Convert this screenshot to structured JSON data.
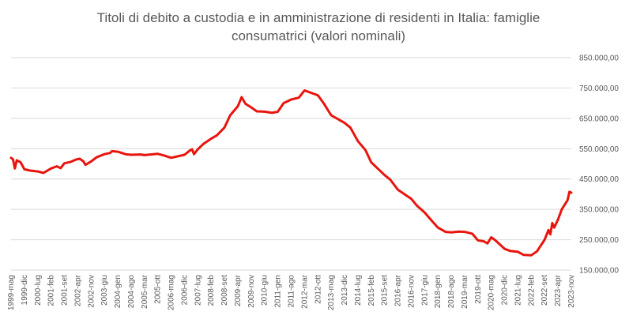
{
  "chart_data": {
    "type": "line",
    "title": "Titoli di debito a custodia e in amministrazione di residenti in Italia: famiglie consumatrici (valori nominali)",
    "title_lines": [
      "Titoli di debito a custodia e in amministrazione di residenti in Italia: famiglie",
      "consumatrici (valori nominali)"
    ],
    "xlabel": "",
    "ylabel": "",
    "ylim": [
      150000,
      850000
    ],
    "y_ticks": [
      150000,
      250000,
      350000,
      450000,
      550000,
      650000,
      750000,
      850000
    ],
    "y_tick_labels": [
      "150.000,00",
      "250.000,00",
      "350.000,00",
      "450.000,00",
      "550.000,00",
      "650.000,00",
      "750.000,00",
      "850.000,00"
    ],
    "y_axis_side": "right",
    "grid": true,
    "legend": "none",
    "x_start": "1999-mag",
    "x_end": "2023-nov",
    "x_tick_labels": [
      "1999-mag",
      "1999-dic",
      "2000-lug",
      "2001-feb",
      "2001-set",
      "2002-apr",
      "2002-nov",
      "2003-giu",
      "2004-gen",
      "2004-ago",
      "2005-mar",
      "2005-ott",
      "2006-mag",
      "2006-dic",
      "2007-lug",
      "2008-feb",
      "2008-set",
      "2009-apr",
      "2009-nov",
      "2010-giu",
      "2011-gen",
      "2011-ago",
      "2012-mar",
      "2012-ott",
      "2013-mag",
      "2013-dic",
      "2014-lug",
      "2015-feb",
      "2015-set",
      "2016-apr",
      "2016-nov",
      "2017-giu",
      "2018-gen",
      "2018-ago",
      "2019-mar",
      "2019-ott",
      "2020-mag",
      "2020-dic",
      "2021-lug",
      "2022-feb",
      "2022-set",
      "2023-apr",
      "2023-nov"
    ],
    "series_color": "#e8150e",
    "series": [
      {
        "name": "",
        "points": [
          [
            "1999-mag",
            520000
          ],
          [
            "1999-giu",
            515000
          ],
          [
            "1999-lug",
            485000
          ],
          [
            "1999-ago",
            512000
          ],
          [
            "1999-ott",
            505000
          ],
          [
            "1999-dic",
            482000
          ],
          [
            "2000-mar",
            478000
          ],
          [
            "2000-lug",
            475000
          ],
          [
            "2000-ott",
            470000
          ],
          [
            "2001-feb",
            485000
          ],
          [
            "2001-mag",
            492000
          ],
          [
            "2001-lug",
            486000
          ],
          [
            "2001-set",
            502000
          ],
          [
            "2001-dic",
            506000
          ],
          [
            "2002-mar",
            514000
          ],
          [
            "2002-mag",
            517000
          ],
          [
            "2002-lug",
            508000
          ],
          [
            "2002-ago",
            497000
          ],
          [
            "2002-nov",
            508000
          ],
          [
            "2003-feb",
            522000
          ],
          [
            "2003-giu",
            532000
          ],
          [
            "2003-set",
            536000
          ],
          [
            "2003-ott",
            542000
          ],
          [
            "2004-gen",
            540000
          ],
          [
            "2004-mag",
            532000
          ],
          [
            "2004-ago",
            530000
          ],
          [
            "2005-gen",
            531000
          ],
          [
            "2005-mar",
            529000
          ],
          [
            "2005-ott",
            533000
          ],
          [
            "2006-gen",
            528000
          ],
          [
            "2006-mag",
            520000
          ],
          [
            "2006-dic",
            530000
          ],
          [
            "2007-mar",
            545000
          ],
          [
            "2007-apr",
            548000
          ],
          [
            "2007-mag",
            532000
          ],
          [
            "2007-lug",
            548000
          ],
          [
            "2007-ott",
            566000
          ],
          [
            "2008-feb",
            583000
          ],
          [
            "2008-mag",
            594000
          ],
          [
            "2008-set",
            620000
          ],
          [
            "2008-dic",
            660000
          ],
          [
            "2009-apr",
            690000
          ],
          [
            "2009-giu",
            720000
          ],
          [
            "2009-ago",
            698000
          ],
          [
            "2009-nov",
            686000
          ],
          [
            "2010-feb",
            673000
          ],
          [
            "2010-giu",
            672000
          ],
          [
            "2010-ott",
            668000
          ],
          [
            "2011-gen",
            672000
          ],
          [
            "2011-apr",
            700000
          ],
          [
            "2011-ago",
            712000
          ],
          [
            "2011-dic",
            718000
          ],
          [
            "2012-mar",
            742000
          ],
          [
            "2012-ott",
            726000
          ],
          [
            "2013-gen",
            700000
          ],
          [
            "2013-mag",
            660000
          ],
          [
            "2013-set",
            646000
          ],
          [
            "2013-dic",
            635000
          ],
          [
            "2014-mar",
            620000
          ],
          [
            "2014-lug",
            575000
          ],
          [
            "2014-nov",
            545000
          ],
          [
            "2015-feb",
            505000
          ],
          [
            "2015-set",
            463000
          ],
          [
            "2015-dic",
            448000
          ],
          [
            "2016-apr",
            415000
          ],
          [
            "2016-nov",
            385000
          ],
          [
            "2017-feb",
            362000
          ],
          [
            "2017-giu",
            340000
          ],
          [
            "2017-set",
            318000
          ],
          [
            "2018-gen",
            290000
          ],
          [
            "2018-mag",
            276000
          ],
          [
            "2018-ago",
            274000
          ],
          [
            "2018-dic",
            277000
          ],
          [
            "2019-mar",
            276000
          ],
          [
            "2019-lug",
            270000
          ],
          [
            "2019-ott",
            248000
          ],
          [
            "2020-gen",
            245000
          ],
          [
            "2020-mar",
            238000
          ],
          [
            "2020-mag",
            258000
          ],
          [
            "2020-lug",
            249000
          ],
          [
            "2020-dic",
            220000
          ],
          [
            "2021-mar",
            213000
          ],
          [
            "2021-lug",
            210000
          ],
          [
            "2021-ott",
            200000
          ],
          [
            "2022-feb",
            199000
          ],
          [
            "2022-mag",
            212000
          ],
          [
            "2022-set",
            250000
          ],
          [
            "2022-nov",
            282000
          ],
          [
            "2022-dic",
            268000
          ],
          [
            "2023-gen",
            305000
          ],
          [
            "2023-feb",
            290000
          ],
          [
            "2023-apr",
            316000
          ],
          [
            "2023-giu",
            350000
          ],
          [
            "2023-set",
            380000
          ],
          [
            "2023-ott",
            408000
          ],
          [
            "2023-nov",
            405000
          ]
        ]
      }
    ]
  }
}
